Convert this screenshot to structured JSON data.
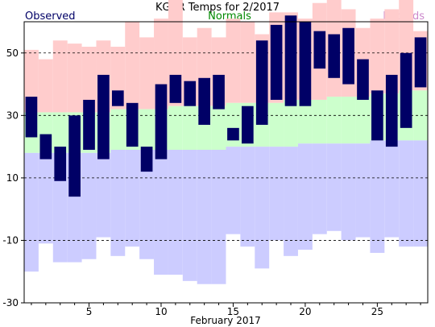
{
  "chart_data": {
    "type": "bar",
    "title": "KGRR Temps for 2/2017",
    "xlabel": "February 2017",
    "ylabel": "",
    "legend": {
      "observed": "Observed",
      "normals": "Normals",
      "records": "Records"
    },
    "colors": {
      "observed": "#000066",
      "normals": "#ccffcc",
      "records_high": "#ffcccc",
      "records_low": "#ccccff",
      "observed_label": "#000066",
      "normals_label": "#008800",
      "records_label": "#cc88cc",
      "gridline": "#000000"
    },
    "ylim": [
      -30,
      60
    ],
    "y_ticks": [
      -30,
      -10,
      10,
      30,
      50
    ],
    "y_tick_labels": [
      "-30",
      "-10",
      "10",
      "30",
      "50"
    ],
    "dashed_gridlines": [
      -10,
      10,
      30,
      50
    ],
    "x_range": [
      1,
      28
    ],
    "x_ticks": [
      5,
      10,
      15,
      20,
      25
    ],
    "x_tick_labels": [
      "5",
      "10",
      "15",
      "20",
      "25"
    ],
    "days": [
      1,
      2,
      3,
      4,
      5,
      6,
      7,
      8,
      9,
      10,
      11,
      12,
      13,
      14,
      15,
      16,
      17,
      18,
      19,
      20,
      21,
      22,
      23,
      24,
      25,
      26,
      27,
      28
    ],
    "series": [
      {
        "name": "Observed",
        "high": [
          36,
          24,
          20,
          30,
          35,
          43,
          38,
          34,
          20,
          40,
          43,
          41,
          42,
          43,
          26,
          33,
          54,
          59,
          62,
          60,
          57,
          56,
          58,
          48,
          38,
          43,
          50,
          55
        ],
        "low": [
          23,
          16,
          9,
          4,
          19,
          16,
          33,
          20,
          12,
          16,
          34,
          33,
          27,
          32,
          22,
          21,
          27,
          35,
          33,
          33,
          45,
          42,
          40,
          35,
          22,
          20,
          26,
          39
        ]
      },
      {
        "name": "Normals",
        "high": [
          31,
          31,
          31,
          31,
          31,
          31,
          32,
          32,
          32,
          32,
          33,
          33,
          33,
          33,
          34,
          34,
          34,
          34,
          35,
          35,
          35,
          36,
          36,
          36,
          37,
          37,
          38,
          38
        ],
        "low": [
          18,
          18,
          18,
          18,
          18,
          18,
          19,
          19,
          19,
          19,
          19,
          19,
          19,
          19,
          20,
          20,
          20,
          20,
          20,
          21,
          21,
          21,
          21,
          21,
          22,
          22,
          22,
          22
        ]
      },
      {
        "name": "Records",
        "high": [
          51,
          48,
          54,
          53,
          52,
          54,
          52,
          60,
          55,
          61,
          69,
          55,
          58,
          55,
          61,
          60,
          56,
          63,
          63,
          61,
          66,
          67,
          64,
          58,
          61,
          64,
          67,
          57
        ],
        "low": [
          -20,
          -11,
          -17,
          -17,
          -16,
          -9,
          -15,
          -12,
          -16,
          -21,
          -21,
          -23,
          -24,
          -24,
          -8,
          -12,
          -19,
          -10,
          -15,
          -13,
          -8,
          -7,
          -10,
          -9,
          -14,
          -9,
          -12,
          -12
        ]
      }
    ],
    "grid": "dashed horizontal lines"
  }
}
